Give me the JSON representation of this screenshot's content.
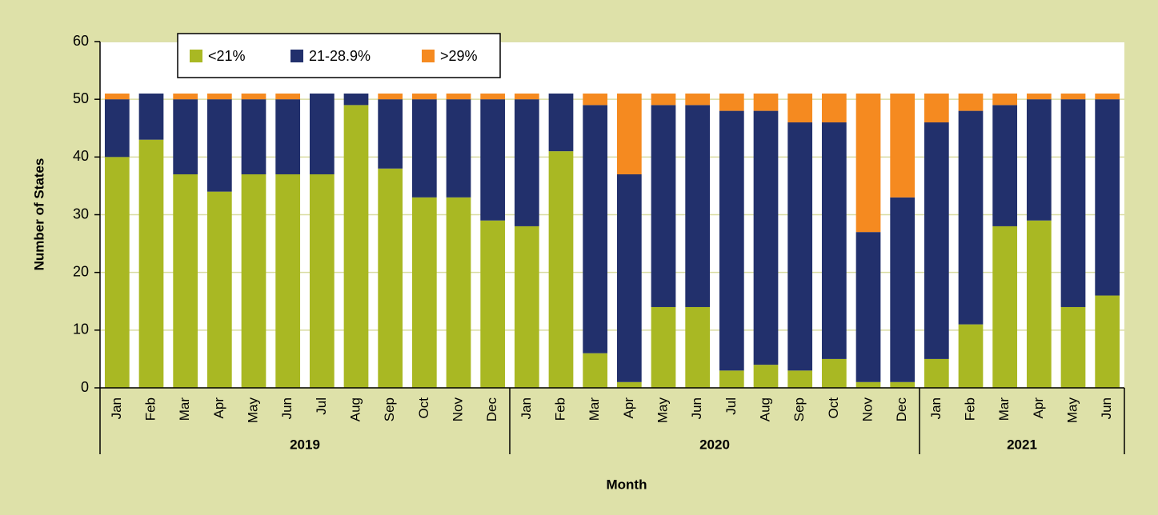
{
  "chart_data": {
    "type": "bar",
    "stacked": true,
    "groups": [
      {
        "label": "2019",
        "categories": [
          "Jan",
          "Feb",
          "Mar",
          "Apr",
          "May",
          "Jun",
          "Jul",
          "Aug",
          "Sep",
          "Oct",
          "Nov",
          "Dec"
        ]
      },
      {
        "label": "2020",
        "categories": [
          "Jan",
          "Feb",
          "Mar",
          "Apr",
          "May",
          "Jun",
          "Jul",
          "Aug",
          "Sep",
          "Oct",
          "Nov",
          "Dec"
        ]
      },
      {
        "label": "2021",
        "categories": [
          "Jan",
          "Feb",
          "Mar",
          "Apr",
          "May",
          "Jun"
        ]
      }
    ],
    "series": [
      {
        "name": "<21%",
        "color": "#a9b823",
        "values": [
          40,
          43,
          37,
          34,
          37,
          37,
          37,
          49,
          38,
          33,
          33,
          29,
          28,
          41,
          6,
          1,
          14,
          14,
          3,
          4,
          3,
          5,
          1,
          1,
          5,
          11,
          28,
          29,
          14,
          16
        ]
      },
      {
        "name": "21-28.9%",
        "color": "#22306c",
        "values": [
          10,
          8,
          13,
          16,
          13,
          13,
          14,
          2,
          12,
          17,
          17,
          21,
          22,
          10,
          43,
          36,
          35,
          35,
          45,
          44,
          43,
          41,
          26,
          32,
          41,
          37,
          21,
          21,
          36,
          34
        ]
      },
      {
        "name": ">29%",
        "color": "#f58a20",
        "values": [
          1,
          0,
          1,
          1,
          1,
          1,
          0,
          0,
          1,
          1,
          1,
          1,
          1,
          0,
          2,
          14,
          2,
          2,
          3,
          3,
          5,
          5,
          24,
          18,
          5,
          3,
          2,
          1,
          1,
          1
        ]
      }
    ],
    "xlabel": "Month",
    "ylabel": "Number of States",
    "ylim": [
      0,
      60
    ],
    "yticks": [
      0,
      10,
      20,
      30,
      40,
      50,
      60
    ],
    "grid": true,
    "legend": "top"
  }
}
